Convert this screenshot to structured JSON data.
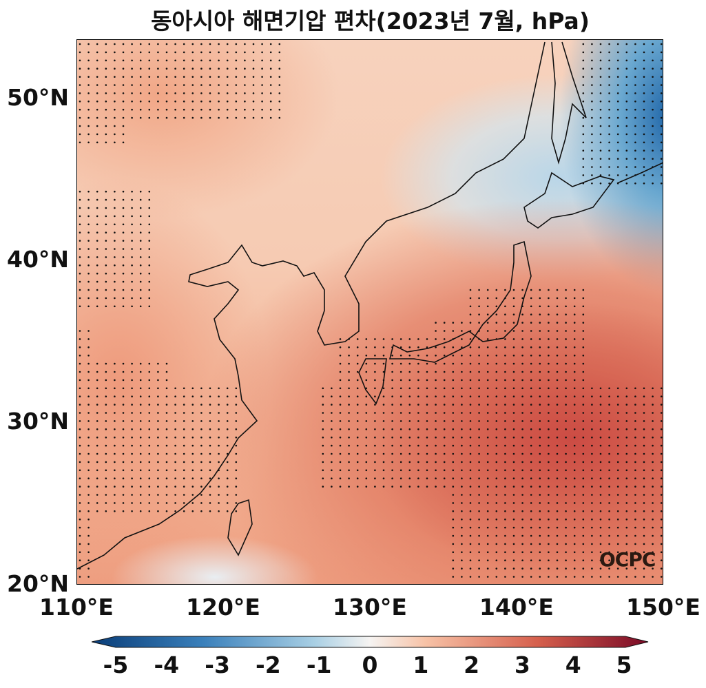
{
  "title": "동아시아 해면기압 편차(2023년 7월, hPa)",
  "y_ticks": [
    "50°N",
    "40°N",
    "30°N",
    "20°N"
  ],
  "x_ticks": [
    "110°E",
    "120°E",
    "130°E",
    "140°E",
    "150°E"
  ],
  "colorbar": {
    "ticks": [
      "-5",
      "-4",
      "-3",
      "-2",
      "-1",
      "0",
      "1",
      "2",
      "3",
      "4",
      "5"
    ],
    "min": -5,
    "max": 5,
    "colormap": "RdBu_r",
    "extend": "both"
  },
  "logo": "OCPC",
  "colors": {
    "positive": "#cc4c44",
    "negative": "#1f65a8",
    "neutral": "#f2f2f2"
  }
}
